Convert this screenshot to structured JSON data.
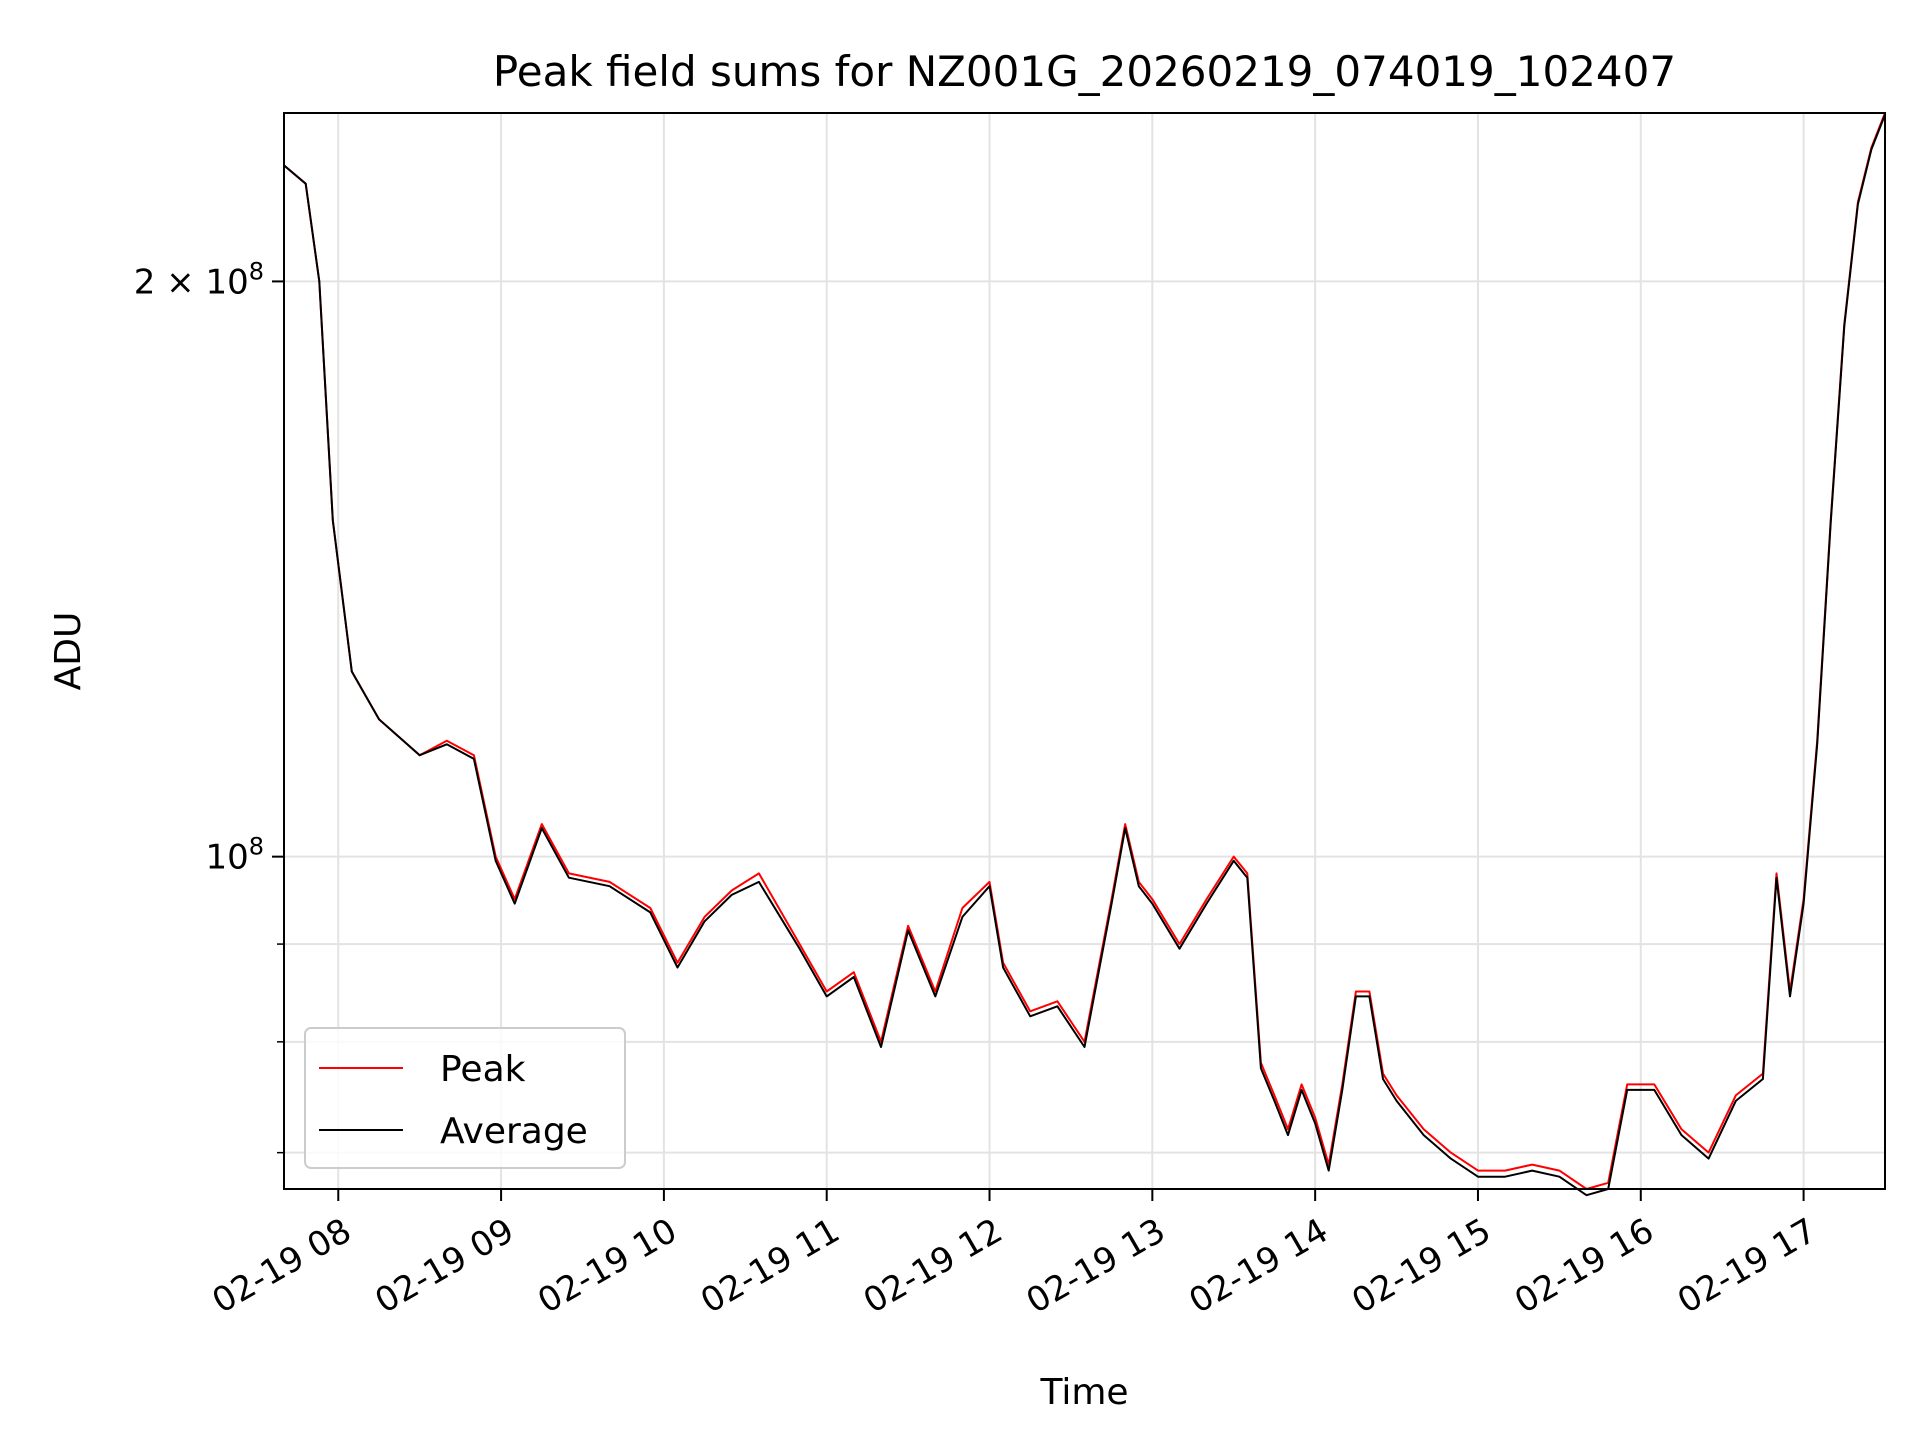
{
  "chart_data": {
    "type": "line",
    "title": "Peak field sums for NZ001G_20260219_074019_102407",
    "xlabel": "Time",
    "ylabel": "ADU",
    "yscale": "log",
    "xlim": [
      "2026-02-19 07:40",
      "2026-02-19 17:30"
    ],
    "ylim": [
      67000000,
      245000000
    ],
    "grid": true,
    "legend_position": "lower-left",
    "x_tick_labels": [
      "02-19 08",
      "02-19 09",
      "02-19 10",
      "02-19 11",
      "02-19 12",
      "02-19 13",
      "02-19 14",
      "02-19 15",
      "02-19 16",
      "02-19 17"
    ],
    "x_ticks": [
      "2026-02-19 08:00",
      "2026-02-19 09:00",
      "2026-02-19 10:00",
      "2026-02-19 11:00",
      "2026-02-19 12:00",
      "2026-02-19 13:00",
      "2026-02-19 14:00",
      "2026-02-19 15:00",
      "2026-02-19 16:00",
      "2026-02-19 17:00"
    ],
    "y_major_ticks": [
      {
        "value": 100000000,
        "label_base": "10",
        "label_exp": "8",
        "label_mult": ""
      },
      {
        "value": 200000000,
        "label_base": "10",
        "label_exp": "8",
        "label_mult": "2 × "
      }
    ],
    "y_minor_ticks": [
      70000000,
      80000000,
      90000000
    ],
    "colors": {
      "Peak": "#ff0000",
      "Average": "#000000"
    },
    "x": [
      "2026-02-19 07:40",
      "2026-02-19 07:48",
      "2026-02-19 07:53",
      "2026-02-19 07:58",
      "2026-02-19 08:05",
      "2026-02-19 08:15",
      "2026-02-19 08:30",
      "2026-02-19 08:40",
      "2026-02-19 08:50",
      "2026-02-19 08:58",
      "2026-02-19 09:05",
      "2026-02-19 09:15",
      "2026-02-19 09:25",
      "2026-02-19 09:40",
      "2026-02-19 09:55",
      "2026-02-19 10:05",
      "2026-02-19 10:15",
      "2026-02-19 10:25",
      "2026-02-19 10:35",
      "2026-02-19 10:50",
      "2026-02-19 11:00",
      "2026-02-19 11:10",
      "2026-02-19 11:20",
      "2026-02-19 11:30",
      "2026-02-19 11:40",
      "2026-02-19 11:50",
      "2026-02-19 12:00",
      "2026-02-19 12:05",
      "2026-02-19 12:15",
      "2026-02-19 12:25",
      "2026-02-19 12:35",
      "2026-02-19 12:45",
      "2026-02-19 12:50",
      "2026-02-19 12:55",
      "2026-02-19 13:00",
      "2026-02-19 13:10",
      "2026-02-19 13:20",
      "2026-02-19 13:30",
      "2026-02-19 13:35",
      "2026-02-19 13:40",
      "2026-02-19 13:45",
      "2026-02-19 13:50",
      "2026-02-19 13:55",
      "2026-02-19 14:00",
      "2026-02-19 14:05",
      "2026-02-19 14:10",
      "2026-02-19 14:15",
      "2026-02-19 14:20",
      "2026-02-19 14:25",
      "2026-02-19 14:30",
      "2026-02-19 14:40",
      "2026-02-19 14:50",
      "2026-02-19 15:00",
      "2026-02-19 15:10",
      "2026-02-19 15:20",
      "2026-02-19 15:30",
      "2026-02-19 15:40",
      "2026-02-19 15:48",
      "2026-02-19 15:55",
      "2026-02-19 16:05",
      "2026-02-19 16:15",
      "2026-02-19 16:25",
      "2026-02-19 16:35",
      "2026-02-19 16:45",
      "2026-02-19 16:50",
      "2026-02-19 16:55",
      "2026-02-19 17:00",
      "2026-02-19 17:05",
      "2026-02-19 17:10",
      "2026-02-19 17:15",
      "2026-02-19 17:20",
      "2026-02-19 17:25",
      "2026-02-19 17:30"
    ],
    "series": [
      {
        "name": "Peak",
        "values": [
          230000000,
          225000000,
          200000000,
          150000000,
          125000000,
          118000000,
          113000000,
          115000000,
          113000000,
          100000000,
          95000000,
          104000000,
          98000000,
          97000000,
          94000000,
          88000000,
          93000000,
          96000000,
          98000000,
          90000000,
          85000000,
          87000000,
          80000000,
          92000000,
          85000000,
          94000000,
          97000000,
          88000000,
          83000000,
          84000000,
          80000000,
          95000000,
          104000000,
          97000000,
          95000000,
          90000000,
          95000000,
          100000000,
          98000000,
          78000000,
          75000000,
          72000000,
          76000000,
          73000000,
          69000000,
          76000000,
          85000000,
          85000000,
          77000000,
          75000000,
          72000000,
          70000000,
          68500000,
          68500000,
          69000000,
          68500000,
          67000000,
          67500000,
          76000000,
          76000000,
          72000000,
          70000000,
          75000000,
          77000000,
          98000000,
          85000000,
          95000000,
          115000000,
          150000000,
          190000000,
          220000000,
          235000000,
          245000000
        ]
      },
      {
        "name": "Average",
        "values": [
          230000000,
          225000000,
          200000000,
          150000000,
          125000000,
          118000000,
          113000000,
          114500000,
          112500000,
          99500000,
          94500000,
          103500000,
          97500000,
          96500000,
          93500000,
          87500000,
          92500000,
          95500000,
          97000000,
          89500000,
          84500000,
          86500000,
          79500000,
          91500000,
          84500000,
          93000000,
          96500000,
          87500000,
          82500000,
          83500000,
          79500000,
          94500000,
          103500000,
          96500000,
          94500000,
          89500000,
          94500000,
          99500000,
          97500000,
          77500000,
          74500000,
          71500000,
          75500000,
          72500000,
          68500000,
          75500000,
          84500000,
          84500000,
          76500000,
          74500000,
          71500000,
          69500000,
          68000000,
          68000000,
          68500000,
          68000000,
          66500000,
          67000000,
          75500000,
          75500000,
          71500000,
          69500000,
          74500000,
          76500000,
          97500000,
          84500000,
          94500000,
          114500000,
          149500000,
          189500000,
          219500000,
          234500000,
          244500000
        ]
      }
    ]
  }
}
